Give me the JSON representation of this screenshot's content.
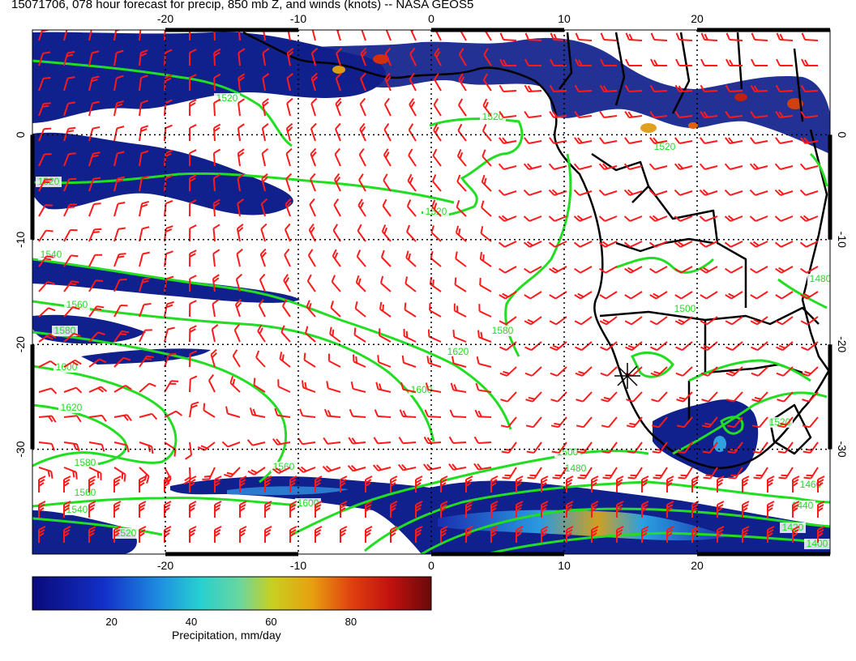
{
  "title": "15071706, 078 hour forecast for precip, 850 mb Z, and winds (knots) -- NASA GEOS5",
  "map": {
    "lon_range": [
      -30,
      30
    ],
    "lat_range": [
      -40,
      10
    ],
    "lon_ticks": [
      "-20",
      "-10",
      "0",
      "10",
      "20"
    ],
    "lat_ticks": [
      "0",
      "-10",
      "-20",
      "-30"
    ],
    "grid": "dotted",
    "colors": {
      "contour": "#22dd22",
      "wind_barb": "#ff1a1a",
      "coastline": "#000000",
      "frame": "#000000"
    },
    "contour_labels": [
      "1520",
      "1520",
      "1520",
      "1520",
      "1540",
      "1560",
      "1580",
      "1600",
      "1620",
      "1620",
      "1580",
      "1600",
      "1580",
      "1560",
      "1540",
      "1520",
      "1560",
      "1600",
      "1500",
      "1480",
      "1460",
      "1440",
      "1420",
      "1400",
      "1500",
      "1480",
      "1520",
      "1520"
    ],
    "marker": "x-star"
  },
  "colorbar": {
    "label": "Precipitation, mm/day",
    "ticks": [
      "20",
      "40",
      "60",
      "80"
    ],
    "range": [
      0,
      100
    ]
  }
}
